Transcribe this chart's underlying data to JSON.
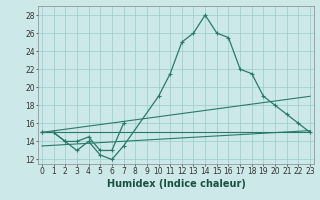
{
  "xlabel": "Humidex (Indice chaleur)",
  "curve1_x": [
    0,
    1,
    2,
    3,
    4,
    5,
    6,
    7,
    10,
    11,
    12,
    13,
    14,
    15,
    16,
    17,
    18,
    19,
    20,
    21,
    22,
    23
  ],
  "curve1_y": [
    15,
    15,
    14,
    13,
    14,
    12.5,
    12,
    13.5,
    19,
    21.5,
    25,
    26,
    28,
    26,
    25.5,
    22,
    21.5,
    19,
    18,
    17,
    16,
    15
  ],
  "curve2_x": [
    0,
    1,
    2,
    3,
    4,
    5,
    6,
    7
  ],
  "curve2_y": [
    15,
    15,
    14,
    14,
    14.5,
    13,
    13,
    16
  ],
  "line1_x": [
    0,
    23
  ],
  "line1_y": [
    15.0,
    15.0
  ],
  "line2_x": [
    0,
    23
  ],
  "line2_y": [
    13.5,
    15.2
  ],
  "line3_x": [
    0,
    23
  ],
  "line3_y": [
    15.0,
    19.0
  ],
  "ylim": [
    11.5,
    29
  ],
  "xlim": [
    -0.3,
    23.3
  ],
  "yticks": [
    12,
    14,
    16,
    18,
    20,
    22,
    24,
    26,
    28
  ],
  "xticks": [
    0,
    1,
    2,
    3,
    4,
    5,
    6,
    7,
    8,
    9,
    10,
    11,
    12,
    13,
    14,
    15,
    16,
    17,
    18,
    19,
    20,
    21,
    22,
    23
  ],
  "line_color": "#2a7a6a",
  "bg_color": "#cce8e8",
  "grid_color": "#99cccc",
  "fig_bg": "#cce8e8",
  "tick_fontsize": 5.5,
  "xlabel_fontsize": 7.0
}
